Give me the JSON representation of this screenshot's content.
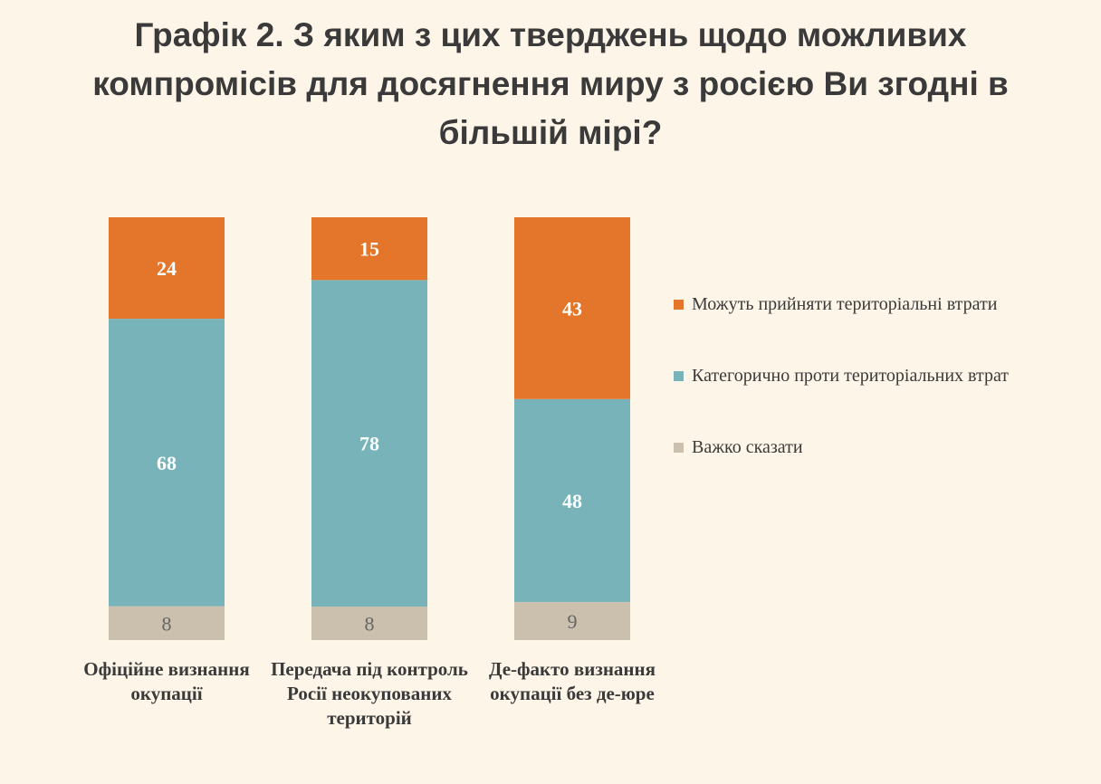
{
  "title": "Графік 2. З яким з цих тверджень щодо можливих компромісів для досягнення миру з росією Ви згодні в більшій мірі?",
  "colors": {
    "accept": "#e3762b",
    "against": "#78b3b9",
    "hard": "#cbc0ae",
    "background": "#fdf5e8"
  },
  "chart_data": {
    "type": "bar",
    "stacked": true,
    "categories": [
      "Офіційне визнання окупації",
      "Передача під контроль Росії неокупованих територій",
      "Де-факто визнання окупації без де-юре"
    ],
    "series": [
      {
        "name": "Важко сказати",
        "values": [
          8,
          8,
          9
        ]
      },
      {
        "name": "Категорично проти територіальних втрат",
        "values": [
          68,
          78,
          48
        ]
      },
      {
        "name": "Можуть прийняти територіальні втрати",
        "values": [
          24,
          15,
          43
        ]
      }
    ],
    "ylim": [
      0,
      100
    ],
    "grid": false,
    "legend": "right",
    "title": "Графік 2. З яким з цих тверджень щодо можливих компромісів для досягнення миру з росією Ви згодні в більшій мірі?"
  },
  "legend": [
    {
      "label": "Можуть прийняти територіальні втрати",
      "color": "#e3762b"
    },
    {
      "label": "Категорично проти територіальних втрат",
      "color": "#78b3b9"
    },
    {
      "label": "Важко сказати",
      "color": "#cbc0ae"
    }
  ]
}
